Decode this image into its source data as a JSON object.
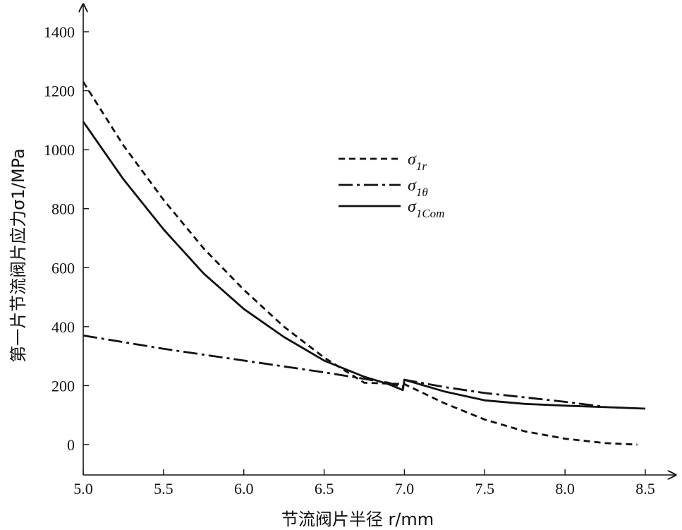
{
  "chart_data": {
    "type": "line",
    "xlabel": "节流阀片半径 r/mm",
    "ylabel": "第一片节流阀片应力σ1/MPa",
    "xlim": [
      5.0,
      8.5
    ],
    "ylim": [
      -100,
      1500
    ],
    "x_ticks": [
      "5.0",
      "5.5",
      "6.0",
      "6.5",
      "7.0",
      "7.5",
      "8.0",
      "8.5"
    ],
    "y_ticks": [
      "0",
      "200",
      "400",
      "600",
      "800",
      "1000",
      "1200",
      "1400"
    ],
    "grid": false,
    "legend_position": "center",
    "series": [
      {
        "name": "σ1r",
        "name_base": "σ",
        "name_sub": "1r",
        "style": "dashed",
        "x": [
          5.0,
          5.25,
          5.5,
          5.75,
          6.0,
          6.25,
          6.5,
          6.75,
          7.0,
          7.25,
          7.5,
          7.75,
          8.0,
          8.25,
          8.45
        ],
        "y": [
          1230,
          1015,
          830,
          665,
          525,
          400,
          295,
          210,
          205,
          140,
          85,
          45,
          20,
          5,
          0
        ]
      },
      {
        "name": "σ1θ",
        "name_base": "σ",
        "name_sub": "1θ",
        "style": "dash-dot",
        "x": [
          5.0,
          5.5,
          6.0,
          6.5,
          6.9,
          6.99,
          7.0,
          7.25,
          7.5,
          7.75,
          8.0,
          8.25
        ],
        "y": [
          370,
          325,
          285,
          245,
          210,
          195,
          220,
          195,
          175,
          160,
          145,
          128
        ]
      },
      {
        "name": "σ1Com",
        "name_base": "σ",
        "name_sub": "1Com",
        "style": "solid",
        "x": [
          5.0,
          5.25,
          5.5,
          5.75,
          6.0,
          6.25,
          6.5,
          6.75,
          6.9,
          6.99,
          7.0,
          7.25,
          7.5,
          7.75,
          8.0,
          8.25,
          8.5
        ],
        "y": [
          1095,
          900,
          730,
          580,
          460,
          365,
          285,
          230,
          205,
          185,
          220,
          180,
          150,
          138,
          132,
          127,
          122
        ]
      }
    ]
  }
}
